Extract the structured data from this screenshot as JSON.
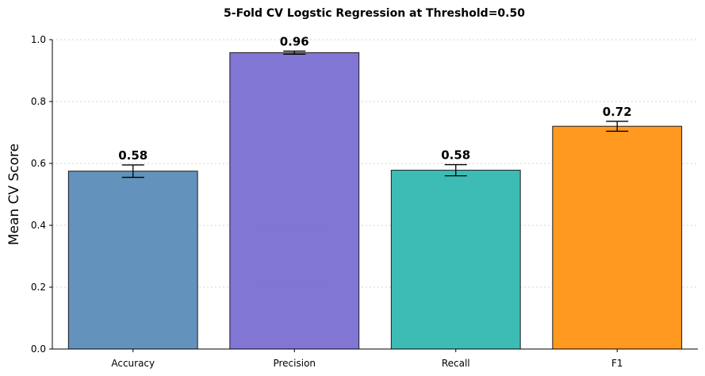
{
  "chart_data": {
    "type": "bar",
    "title": "5-Fold CV Logstic Regression at Threshold=0.50",
    "xlabel": "",
    "ylabel": "Mean CV Score",
    "categories": [
      "Accuracy",
      "Precision",
      "Recall",
      "F1"
    ],
    "values": [
      0.575,
      0.958,
      0.578,
      0.72
    ],
    "errors": [
      0.02,
      0.005,
      0.018,
      0.016
    ],
    "value_labels": [
      "0.58",
      "0.96",
      "0.58",
      "0.72"
    ],
    "colors": [
      "#5b8db8",
      "#7b6fd3",
      "#31b8b0",
      "#ff9413"
    ],
    "ylim": [
      0,
      1.0
    ],
    "yticks": [
      "0.0",
      "0.2",
      "0.4",
      "0.6",
      "0.8",
      "1.0"
    ],
    "grid": "y-dotted",
    "legend": "none"
  }
}
